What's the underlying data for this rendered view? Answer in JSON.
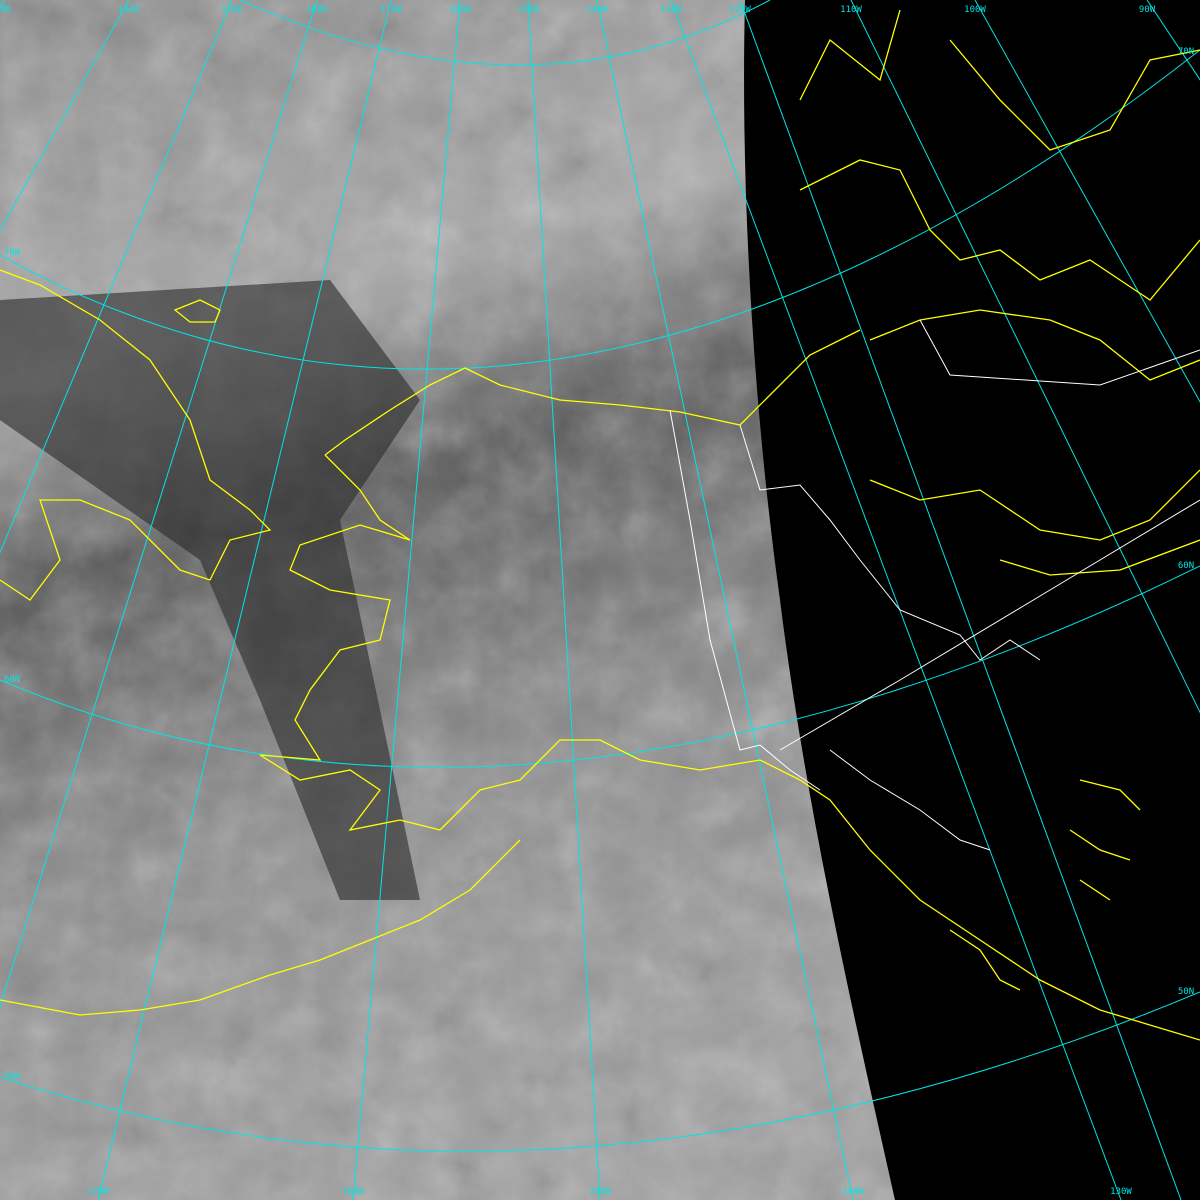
{
  "colors": {
    "graticule": "#00e5e5",
    "coastline": "#ffff00",
    "border": "#ffffff",
    "space": "#000000"
  },
  "top_labels": [
    "0E",
    "160E",
    "170E",
    "180E",
    "170W",
    "160W",
    "150W",
    "140W",
    "130W",
    "120W",
    "110W",
    "100W",
    "90W"
  ],
  "bottom_labels": [
    "170W",
    "160W",
    "150W",
    "140W",
    "130W"
  ],
  "left_labels": [
    "70N",
    "60N",
    "50N"
  ],
  "right_labels": [
    "70N",
    "60N",
    "50N"
  ]
}
